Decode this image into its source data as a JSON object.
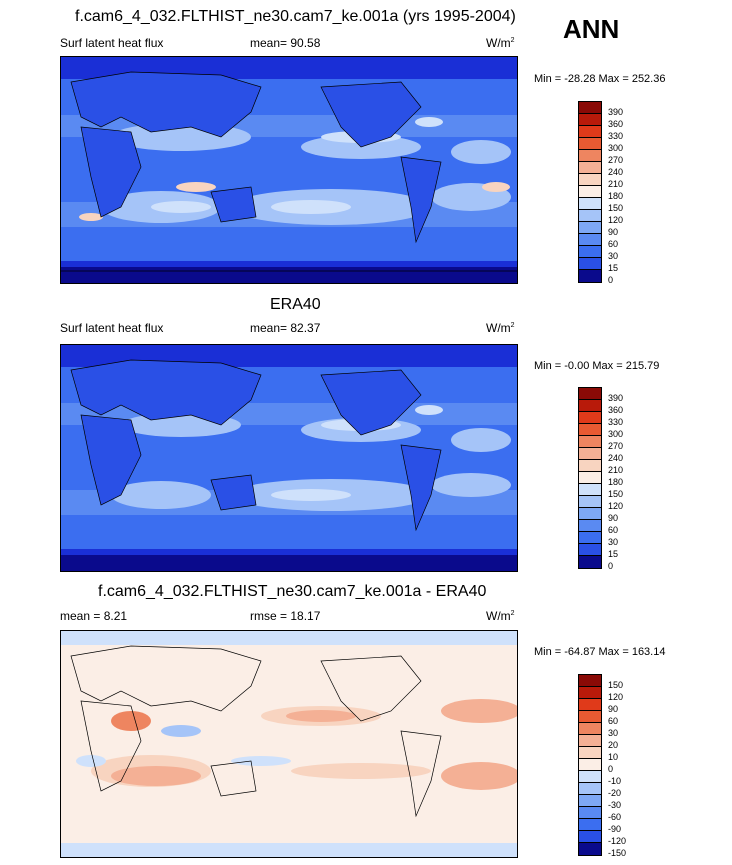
{
  "season": "ANN",
  "colors": {
    "abs_scale": [
      "#0a0a8c",
      "#1a2fd6",
      "#2a50e6",
      "#3b6ef0",
      "#5a8af2",
      "#7ea8f5",
      "#a5c4f8",
      "#cfe1fb",
      "#fbeee6",
      "#f8d4c0",
      "#f4b095",
      "#ee8560",
      "#e85a32",
      "#e03a1a",
      "#b81a0a",
      "#8a0a06"
    ],
    "diff_scale": [
      "#0a0a8c",
      "#1a2fd6",
      "#2a50e6",
      "#3b6ef0",
      "#5a8af2",
      "#7ea8f5",
      "#a5c4f8",
      "#cfe1fb",
      "#fbeee6",
      "#f8d4c0",
      "#f4b095",
      "#ee8560",
      "#e85a32",
      "#e03a1a",
      "#b81a0a",
      "#8a0a06"
    ]
  },
  "panels": [
    {
      "title": "f.cam6_4_032.FLTHIST_ne30.cam7_ke.001a (yrs 1995-2004)",
      "left_label": "Surf latent heat flux",
      "stat_label": "mean=  90.58",
      "units": "W/m",
      "units_sup": "2",
      "minmax": "Min = -28.28 Max = 252.36",
      "colorbar_ticks": [
        "390",
        "360",
        "330",
        "300",
        "270",
        "240",
        "210",
        "180",
        "150",
        "120",
        "90",
        "60",
        "30",
        "15",
        "0"
      ]
    },
    {
      "title": "ERA40",
      "left_label": "Surf latent heat flux",
      "stat_label": "mean=  82.37",
      "units": "W/m",
      "units_sup": "2",
      "minmax": "Min =  -0.00 Max = 215.79",
      "colorbar_ticks": [
        "390",
        "360",
        "330",
        "300",
        "270",
        "240",
        "210",
        "180",
        "150",
        "120",
        "90",
        "60",
        "30",
        "15",
        "0"
      ]
    },
    {
      "title": "f.cam6_4_032.FLTHIST_ne30.cam7_ke.001a - ERA40",
      "left_label": "mean =   8.21",
      "stat_label": "rmse =  18.17",
      "units": "W/m",
      "units_sup": "2",
      "minmax": "Min = -64.87 Max = 163.14",
      "colorbar_ticks": [
        "150",
        "120",
        "90",
        "60",
        "30",
        "20",
        "10",
        "0",
        "-10",
        "-20",
        "-30",
        "-60",
        "-90",
        "-120",
        "-150"
      ]
    }
  ]
}
